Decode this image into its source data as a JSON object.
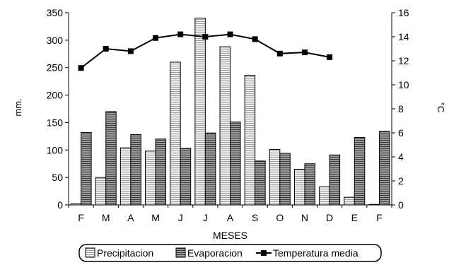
{
  "chart_data": {
    "type": "bar",
    "xlabel": "MESES",
    "ylabel": "mm.",
    "y2label": "°C",
    "ylim": [
      0,
      350
    ],
    "y2lim": [
      0,
      16
    ],
    "yticks": [
      0,
      50,
      100,
      150,
      200,
      250,
      300,
      350
    ],
    "y2ticks": [
      0,
      2,
      4,
      6,
      8,
      10,
      12,
      14,
      16
    ],
    "categories": [
      "F",
      "M",
      "A",
      "M",
      "J",
      "J",
      "A",
      "S",
      "O",
      "N",
      "D",
      "E",
      "F"
    ],
    "series": [
      {
        "name": "Precipitacion",
        "kind": "bar",
        "axis": "left",
        "values": [
          2,
          50,
          104,
          98,
          260,
          340,
          288,
          236,
          101,
          65,
          33,
          14,
          1
        ]
      },
      {
        "name": "Evaporacion",
        "kind": "bar",
        "axis": "left",
        "values": [
          132,
          170,
          128,
          120,
          103,
          131,
          151,
          80,
          94,
          75,
          91,
          123,
          134
        ]
      },
      {
        "name": "Temperatura media",
        "kind": "line",
        "axis": "right",
        "values": [
          11.4,
          13.0,
          12.8,
          13.9,
          14.2,
          14.0,
          14.2,
          13.8,
          12.6,
          12.7,
          12.3,
          null,
          null
        ]
      }
    ],
    "legend_position": "bottom",
    "grid": false,
    "colors": {
      "precipitacion_fill": "#e6e6e6",
      "evaporacion_fill": "#7a7a7a",
      "line": "#000000"
    }
  }
}
